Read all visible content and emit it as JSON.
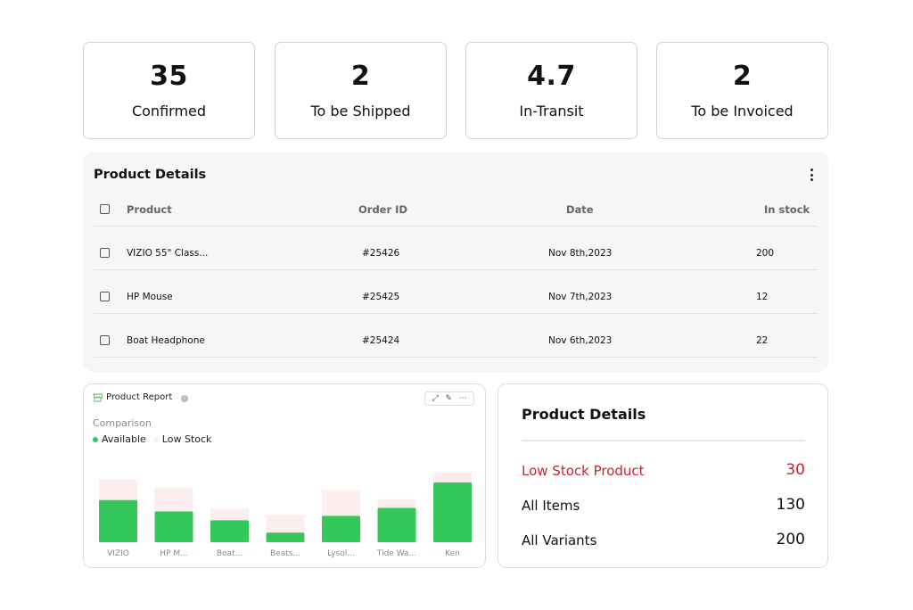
{
  "stats": [
    {
      "value": "35",
      "label": "Confirmed"
    },
    {
      "value": "2",
      "label": "To be Shipped"
    },
    {
      "value": "4.7",
      "label": "In-Transit"
    },
    {
      "value": "2",
      "label": "To be Invoiced"
    }
  ],
  "product_table": {
    "title": "Product Details",
    "columns": [
      "Product",
      "Order ID",
      "Date",
      "In stock"
    ],
    "rows": [
      {
        "product": "VIZIO 55\" Class...",
        "order_id": "#25426",
        "date": "Nov 8th,2023",
        "in_stock": "200"
      },
      {
        "product": "HP Mouse",
        "order_id": "#25425",
        "date": "Nov 7th,2023",
        "in_stock": "12"
      },
      {
        "product": "Boat Headphone",
        "order_id": "#25424",
        "date": "Nov 6th,2023",
        "in_stock": "22"
      }
    ]
  },
  "report": {
    "title": "Product Report",
    "info_icon": "i",
    "toolbar_icons": [
      "expand-icon",
      "edit-icon",
      "more-icon"
    ],
    "subtitle": "Comparison"
  },
  "chart_data": {
    "type": "bar",
    "stacked": true,
    "categories": [
      "VIZIO",
      "HP M...",
      "Boat...",
      "Beats...",
      "Lysol...",
      "Tide Wa...",
      "Ken"
    ],
    "series": [
      {
        "name": "Available",
        "color": "#34c759",
        "values": [
          48,
          35,
          25,
          11,
          30,
          39,
          68
        ]
      },
      {
        "name": "Low Stock",
        "color": "#fdeeee",
        "values": [
          23,
          27,
          13,
          20,
          29,
          10,
          11
        ]
      }
    ],
    "legend_position": "top-left",
    "grid": false
  },
  "summary": {
    "title": "Product Details",
    "rows": [
      {
        "label": "Low Stock Product",
        "value": "30"
      },
      {
        "label": "All Items",
        "value": "130"
      },
      {
        "label": "All Variants",
        "value": "200"
      }
    ]
  },
  "colors": {
    "accent_green": "#34c759",
    "low_stock_fill": "#fdeeee",
    "alert_red": "#c8232c"
  }
}
